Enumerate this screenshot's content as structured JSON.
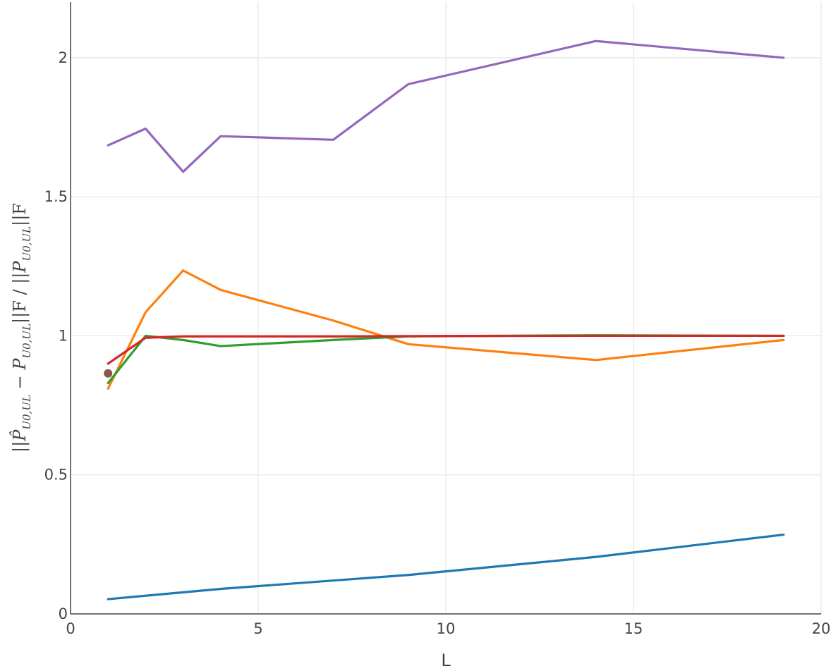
{
  "chart_data": {
    "type": "line",
    "title": "",
    "xlabel": "L",
    "ylabel": "||P̂U0,UL − PU0,UL||F / ||PU0,UL||F",
    "ylabel_parts": {
      "bars_open": "||",
      "p_hat": "P̂",
      "sub_u0_a": "U0,UL",
      "minus": " − ",
      "p_plain": "P",
      "sub_u0_b": "U0,UL",
      "bars_mid": "||F / ||",
      "p_plain2": "P",
      "sub_u0_c": "U0,UL",
      "bars_close": "||F"
    },
    "xlim": [
      0,
      20
    ],
    "ylim": [
      0,
      2.2
    ],
    "x_ticks": [
      0,
      5,
      10,
      15,
      20
    ],
    "x_tick_labels": [
      "0",
      "5",
      "10",
      "15",
      "20"
    ],
    "y_ticks": [
      0,
      0.5,
      1,
      1.5,
      2
    ],
    "y_tick_labels": [
      "0",
      "0.5",
      "1",
      "1.5",
      "2"
    ],
    "grid": true,
    "legend": "none",
    "series": [
      {
        "color": "#9467bd",
        "x": [
          1,
          2,
          3,
          4,
          7,
          9,
          14,
          19
        ],
        "y": [
          1.685,
          1.745,
          1.59,
          1.718,
          1.705,
          1.905,
          2.06,
          2.0
        ]
      },
      {
        "color": "#ff7f0e",
        "x": [
          1,
          2,
          3,
          4,
          7,
          9,
          14,
          19
        ],
        "y": [
          0.81,
          1.085,
          1.235,
          1.165,
          1.055,
          0.97,
          0.913,
          0.985
        ]
      },
      {
        "color": "#2ca02c",
        "x": [
          1,
          2,
          3,
          4,
          7,
          9,
          14,
          19
        ],
        "y": [
          0.83,
          1.0,
          0.985,
          0.963,
          0.985,
          0.998,
          1.002,
          1.0
        ]
      },
      {
        "color": "#d62728",
        "x": [
          1,
          2,
          3,
          4,
          7,
          9,
          14,
          19
        ],
        "y": [
          0.9,
          0.993,
          0.998,
          0.998,
          0.998,
          0.999,
          1.0,
          1.0
        ]
      },
      {
        "color": "#1f77b4",
        "x": [
          1,
          4,
          9,
          14,
          19
        ],
        "y": [
          0.053,
          0.09,
          0.14,
          0.205,
          0.285
        ]
      },
      {
        "color": "#8c564b",
        "mode": "markers",
        "x": [
          1
        ],
        "y": [
          0.865
        ]
      }
    ]
  }
}
